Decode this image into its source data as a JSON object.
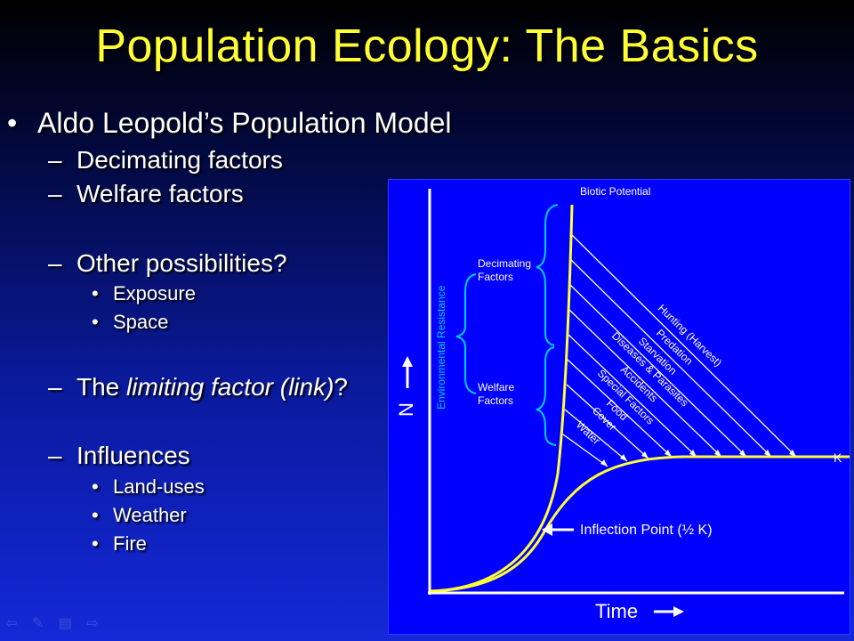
{
  "slide": {
    "title": "Population Ecology: The Basics",
    "bullets": {
      "model": "Aldo Leopold’s Population Model",
      "decimating": "Decimating factors",
      "welfare": "Welfare factors",
      "other": "Other possibilities?",
      "exposure": "Exposure",
      "space": "Space",
      "limiting_prefix": "The ",
      "limiting_italic": "limiting factor (link)",
      "limiting_suffix": "?",
      "influences": "Influences",
      "land_uses": "Land-uses",
      "weather": "Weather",
      "fire": "Fire"
    },
    "markers": {
      "bullet": "•",
      "dash": "–"
    }
  },
  "figure": {
    "biotic_potential": "Biotic Potential",
    "environmental_resistance": "Environmental Resistance",
    "decimating_line1": "Decimating",
    "decimating_line2": "Factors",
    "welfare_line1": "Welfare",
    "welfare_line2": "Factors",
    "factor_labels": [
      "Hunting (Harvest)",
      "Predation",
      "Starvation",
      "Diseases & Parasites",
      "Accidents",
      "Special Factors",
      "Food",
      "Cover",
      "Water"
    ],
    "k_label": "K",
    "inflection_label": "Inflection Point (½ K)",
    "y_axis_label": "N",
    "x_axis_label": "Time",
    "colors": {
      "curve": "#ffff33",
      "background": "#0000ff",
      "text": "#ffffff",
      "brace": "#00ccff"
    }
  },
  "nav_icons": [
    "back-arrow-icon",
    "pen-icon",
    "menu-icon",
    "forward-arrow-icon"
  ]
}
